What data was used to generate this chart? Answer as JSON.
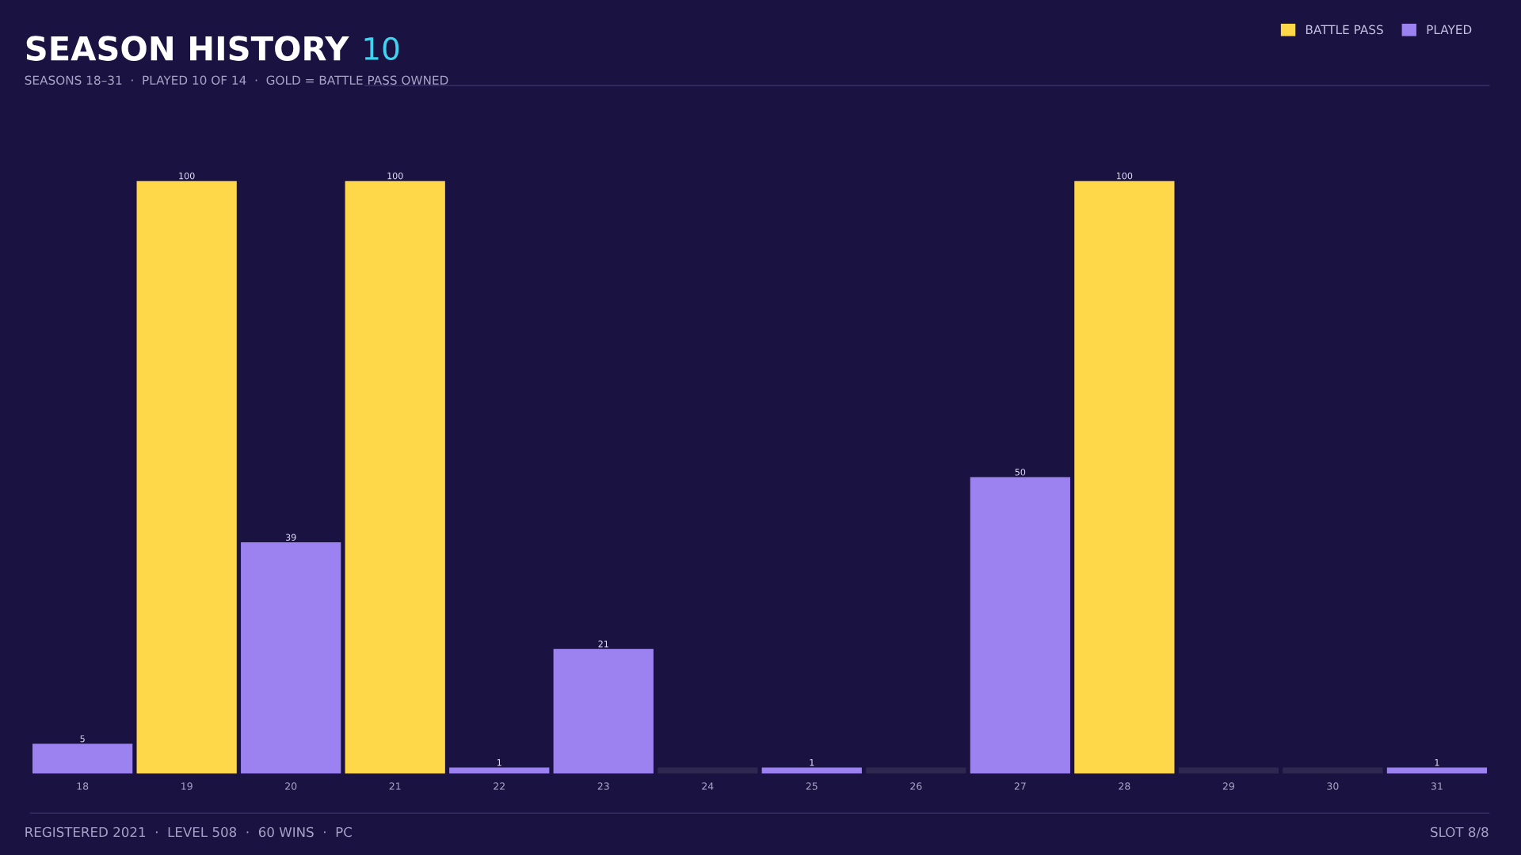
{
  "chart_data": {
    "type": "bar",
    "title": "SEASON HISTORY",
    "subtitle": "SEASONS 18–31  ·  PLAYED 10 OF 14  ·  GOLD = BATTLE PASS OWNED",
    "annotations": [
      "10",
      "REGISTERED 2021  ·  LEVEL 508  ·  60 WINS  ·  PC",
      "SLOT 8/8"
    ],
    "categories": [
      "18",
      "19",
      "20",
      "21",
      "22",
      "23",
      "24",
      "25",
      "26",
      "27",
      "28",
      "29",
      "30",
      "31"
    ],
    "series": [
      {
        "name": "BATTLE PASS",
        "color": "#ffd84a",
        "values": [
          null,
          100,
          null,
          100,
          null,
          null,
          null,
          null,
          null,
          null,
          100,
          null,
          null,
          null
        ],
        "value_labels": [
          null,
          "100",
          null,
          "100",
          null,
          null,
          null,
          null,
          null,
          null,
          "100",
          null,
          null,
          null
        ]
      },
      {
        "name": "PLAYED",
        "color": "#9b82f0",
        "values": [
          5,
          null,
          39,
          null,
          1,
          21,
          null,
          1,
          null,
          50,
          null,
          null,
          null,
          1
        ],
        "value_labels": [
          "5",
          null,
          "39",
          null,
          "1",
          "21",
          null,
          "1",
          null,
          "50",
          null,
          null,
          null,
          "1"
        ]
      },
      {
        "color": "#2e2850",
        "values": [
          null,
          null,
          null,
          null,
          null,
          null,
          1,
          null,
          1,
          null,
          null,
          1,
          1,
          null
        ]
      }
    ],
    "legend": "top right",
    "grid": false
  }
}
